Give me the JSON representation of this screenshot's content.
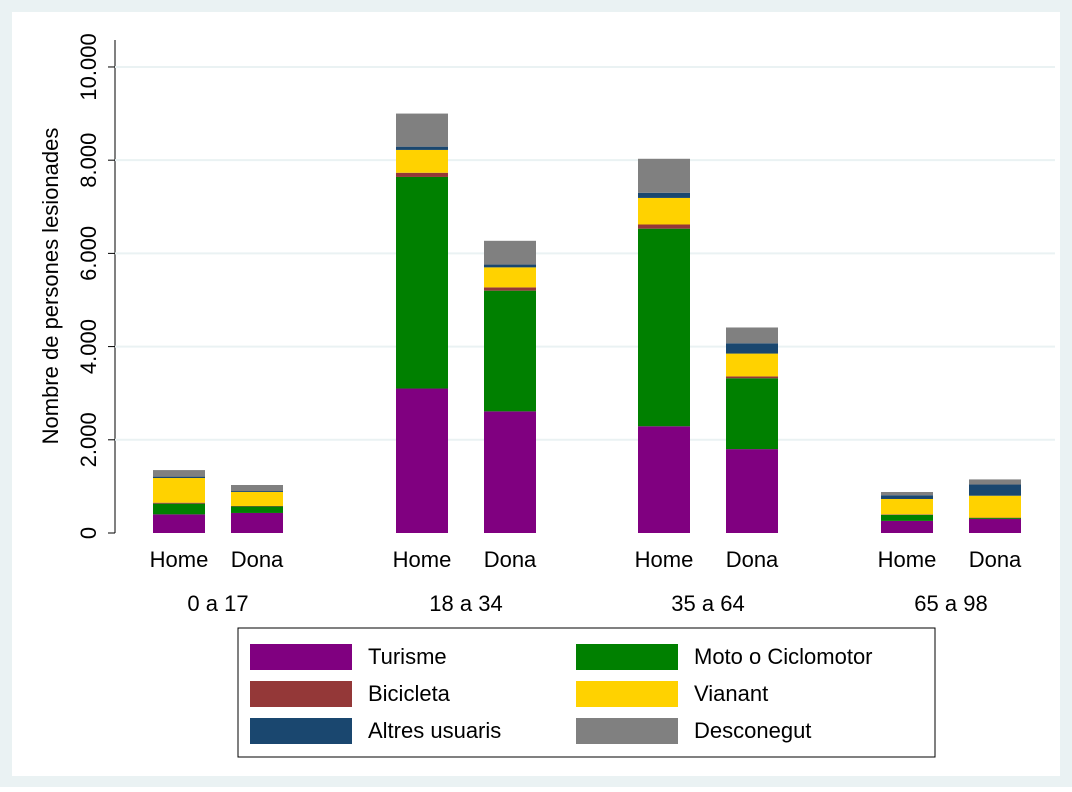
{
  "chart_data": {
    "type": "stacked-bar",
    "ylabel": "Nombre de persones lesionades",
    "groups": [
      "0 a 17",
      "18 a 34",
      "35 a 64",
      "65 a 98"
    ],
    "categories": [
      "Home",
      "Dona",
      "Home",
      "Dona",
      "Home",
      "Dona",
      "Home",
      "Dona"
    ],
    "series": [
      {
        "name": "Turisme",
        "color": "#800080",
        "values": [
          400,
          430,
          3100,
          2610,
          2290,
          1800,
          260,
          300
        ]
      },
      {
        "name": "Moto o Ciclomotor",
        "color": "#008000",
        "values": [
          230,
          140,
          4540,
          2590,
          4240,
          1520,
          130,
          20
        ]
      },
      {
        "name": "Bicicleta",
        "color": "#943838",
        "values": [
          20,
          10,
          90,
          70,
          90,
          40,
          10,
          10
        ]
      },
      {
        "name": "Vianant",
        "color": "#ffd200",
        "values": [
          530,
          300,
          490,
          430,
          570,
          490,
          330,
          470
        ]
      },
      {
        "name": "Altres usuaris",
        "color": "#1a476f",
        "values": [
          30,
          20,
          70,
          60,
          110,
          220,
          80,
          240
        ]
      },
      {
        "name": "Desconegut",
        "color": "#808080",
        "values": [
          140,
          130,
          710,
          510,
          730,
          340,
          70,
          110
        ]
      }
    ],
    "ylim": [
      0,
      10450
    ],
    "yticks": [
      0,
      {
        "value": 2000,
        "label": "2.000"
      },
      {
        "value": 4000,
        "label": "4.000"
      },
      {
        "value": 6000,
        "label": "6.000"
      },
      {
        "value": 8000,
        "label": "8.000"
      },
      {
        "value": 10000,
        "label": "10.000"
      }
    ],
    "grid": true
  }
}
